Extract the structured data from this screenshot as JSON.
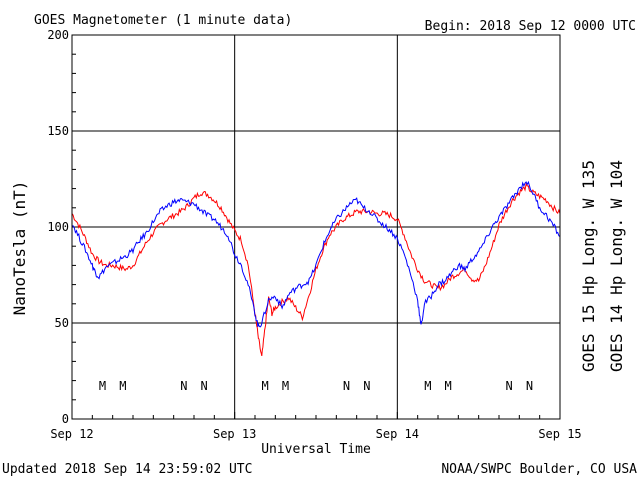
{
  "header": {
    "title": "GOES Magnetometer (1 minute data)",
    "begin": "Begin:  2018 Sep 12 0000 UTC"
  },
  "footer": {
    "updated": "Updated 2018 Sep 14 23:59:02 UTC",
    "credit": "NOAA/SWPC Boulder, CO USA"
  },
  "chart_data": {
    "type": "line",
    "xlabel": "Universal Time",
    "ylabel": "NanoTesla (nT)",
    "xlim": [
      0,
      72
    ],
    "ylim": [
      0,
      200
    ],
    "x_unit": "hours since 2018 Sep 12 0000 UTC",
    "x_ticks": [
      {
        "hour": 0,
        "label": "Sep 12"
      },
      {
        "hour": 24,
        "label": "Sep 13"
      },
      {
        "hour": 48,
        "label": "Sep 14"
      },
      {
        "hour": 72,
        "label": "Sep 15"
      }
    ],
    "y_ticks": [
      0,
      50,
      100,
      150,
      200
    ],
    "grid": true,
    "series": [
      {
        "name": "GOES 15 Hp  Long. W 135",
        "color": "#ff0000",
        "points": [
          [
            0,
            107
          ],
          [
            1,
            101
          ],
          [
            2,
            94
          ],
          [
            3,
            86
          ],
          [
            4,
            82
          ],
          [
            5,
            80
          ],
          [
            6,
            80
          ],
          [
            7,
            79
          ],
          [
            8,
            78
          ],
          [
            9,
            80
          ],
          [
            10,
            86
          ],
          [
            11,
            92
          ],
          [
            12,
            97
          ],
          [
            13,
            101
          ],
          [
            14,
            104
          ],
          [
            15,
            106
          ],
          [
            16,
            108
          ],
          [
            17,
            111
          ],
          [
            18,
            115
          ],
          [
            19,
            118
          ],
          [
            20,
            117
          ],
          [
            21,
            114
          ],
          [
            22,
            110
          ],
          [
            23,
            104
          ],
          [
            24,
            98
          ],
          [
            25,
            93
          ],
          [
            26,
            80
          ],
          [
            27,
            55
          ],
          [
            27.5,
            42
          ],
          [
            28,
            32
          ],
          [
            28.5,
            48
          ],
          [
            29,
            63
          ],
          [
            29.5,
            55
          ],
          [
            30,
            58
          ],
          [
            31,
            61
          ],
          [
            32,
            63
          ],
          [
            33,
            58
          ],
          [
            34,
            53
          ],
          [
            35,
            65
          ],
          [
            36,
            78
          ],
          [
            37,
            88
          ],
          [
            38,
            96
          ],
          [
            39,
            100
          ],
          [
            40,
            104
          ],
          [
            41,
            106
          ],
          [
            42,
            108
          ],
          [
            43,
            108
          ],
          [
            44,
            108
          ],
          [
            45,
            107
          ],
          [
            46,
            107
          ],
          [
            47,
            106
          ],
          [
            48,
            104
          ],
          [
            49,
            96
          ],
          [
            50,
            86
          ],
          [
            51,
            78
          ],
          [
            52,
            72
          ],
          [
            53,
            70
          ],
          [
            54,
            68
          ],
          [
            55,
            70
          ],
          [
            56,
            74
          ],
          [
            57,
            76
          ],
          [
            58,
            78
          ],
          [
            59,
            73
          ],
          [
            60,
            72
          ],
          [
            61,
            80
          ],
          [
            62,
            90
          ],
          [
            63,
            101
          ],
          [
            64,
            108
          ],
          [
            65,
            114
          ],
          [
            66,
            118
          ],
          [
            67,
            121
          ],
          [
            68,
            118
          ],
          [
            69,
            116
          ],
          [
            70,
            114
          ],
          [
            71,
            110
          ],
          [
            72,
            107
          ]
        ]
      },
      {
        "name": "GOES 14 Hp  Long. W 104",
        "color": "#0000ff",
        "points": [
          [
            0,
            102
          ],
          [
            1,
            95
          ],
          [
            2,
            88
          ],
          [
            3,
            80
          ],
          [
            3.5,
            76
          ],
          [
            4,
            74
          ],
          [
            5,
            79
          ],
          [
            6,
            81
          ],
          [
            7,
            83
          ],
          [
            8,
            85
          ],
          [
            9,
            88
          ],
          [
            10,
            93
          ],
          [
            11,
            97
          ],
          [
            12,
            103
          ],
          [
            13,
            108
          ],
          [
            14,
            111
          ],
          [
            15,
            113
          ],
          [
            16,
            114
          ],
          [
            17,
            113
          ],
          [
            18,
            112
          ],
          [
            19,
            109
          ],
          [
            20,
            106
          ],
          [
            21,
            104
          ],
          [
            22,
            100
          ],
          [
            23,
            96
          ],
          [
            24,
            86
          ],
          [
            25,
            80
          ],
          [
            26,
            70
          ],
          [
            27,
            55
          ],
          [
            27.5,
            48
          ],
          [
            28,
            50
          ],
          [
            29,
            62
          ],
          [
            30,
            64
          ],
          [
            31,
            58
          ],
          [
            32,
            65
          ],
          [
            33,
            68
          ],
          [
            34,
            70
          ],
          [
            35,
            72
          ],
          [
            36,
            80
          ],
          [
            37,
            90
          ],
          [
            38,
            98
          ],
          [
            39,
            104
          ],
          [
            40,
            108
          ],
          [
            41,
            112
          ],
          [
            42,
            114
          ],
          [
            43,
            110
          ],
          [
            44,
            108
          ],
          [
            45,
            104
          ],
          [
            46,
            101
          ],
          [
            47,
            98
          ],
          [
            48,
            94
          ],
          [
            49,
            86
          ],
          [
            50,
            75
          ],
          [
            51,
            62
          ],
          [
            51.5,
            48
          ],
          [
            52,
            60
          ],
          [
            53,
            64
          ],
          [
            54,
            70
          ],
          [
            55,
            72
          ],
          [
            56,
            76
          ],
          [
            57,
            80
          ],
          [
            58,
            78
          ],
          [
            59,
            83
          ],
          [
            60,
            87
          ],
          [
            61,
            93
          ],
          [
            62,
            100
          ],
          [
            63,
            105
          ],
          [
            64,
            110
          ],
          [
            65,
            115
          ],
          [
            66,
            120
          ],
          [
            67,
            124
          ],
          [
            68,
            118
          ],
          [
            69,
            110
          ],
          [
            70,
            106
          ],
          [
            71,
            101
          ],
          [
            72,
            95
          ]
        ]
      }
    ],
    "markers": [
      {
        "hour": 4.5,
        "label": "M",
        "color": "#0000ff"
      },
      {
        "hour": 7.5,
        "label": "M",
        "color": "#ff0000"
      },
      {
        "hour": 16.5,
        "label": "N",
        "color": "#0000ff"
      },
      {
        "hour": 19.5,
        "label": "N",
        "color": "#ff0000"
      },
      {
        "hour": 28.5,
        "label": "M",
        "color": "#0000ff"
      },
      {
        "hour": 31.5,
        "label": "M",
        "color": "#ff0000"
      },
      {
        "hour": 40.5,
        "label": "N",
        "color": "#0000ff"
      },
      {
        "hour": 43.5,
        "label": "N",
        "color": "#ff0000"
      },
      {
        "hour": 52.5,
        "label": "M",
        "color": "#0000ff"
      },
      {
        "hour": 55.5,
        "label": "M",
        "color": "#ff0000"
      },
      {
        "hour": 64.5,
        "label": "N",
        "color": "#0000ff"
      },
      {
        "hour": 67.5,
        "label": "N",
        "color": "#ff0000"
      }
    ]
  }
}
